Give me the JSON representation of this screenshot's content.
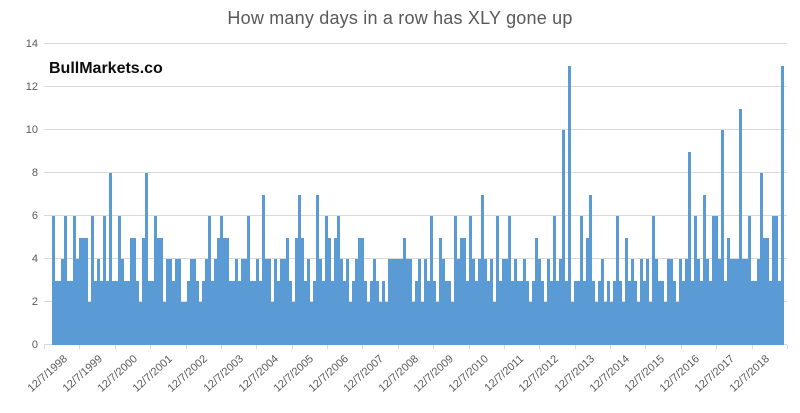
{
  "title": "How many days in a row has XLY gone up",
  "watermark": "BullMarkets.co",
  "colors": {
    "bar": "#5b9bd5",
    "title_text": "#595959",
    "axis_text": "#595959",
    "gridline": "#d9d9d9",
    "watermark_text": "#0d0d0d",
    "background": "#ffffff"
  },
  "chart_data": {
    "type": "bar",
    "title": "How many days in a row has XLY gone up",
    "xlabel": "",
    "ylabel": "",
    "ylim": [
      0,
      14
    ],
    "y_ticks": [
      0,
      2,
      4,
      6,
      8,
      10,
      12,
      14
    ],
    "grid": "horizontal",
    "legend": "none",
    "x_tick_labels": [
      "12/7/1998",
      "12/7/1999",
      "12/7/2000",
      "12/7/2001",
      "12/7/2002",
      "12/7/2003",
      "12/7/2004",
      "12/7/2005",
      "12/7/2006",
      "12/7/2007",
      "12/7/2008",
      "12/7/2009",
      "12/7/2010",
      "12/7/2011",
      "12/7/2012",
      "12/7/2013",
      "12/7/2014",
      "12/7/2015",
      "12/7/2016",
      "12/7/2017",
      "12/7/2018"
    ],
    "values_note": "Consecutive up-day streak lengths per occurrence, 12/7/1998 through late 2018, read left to right",
    "values": [
      6,
      3,
      3,
      4,
      6,
      3,
      3,
      6,
      4,
      5,
      5,
      5,
      2,
      6,
      3,
      4,
      3,
      6,
      3,
      8,
      3,
      3,
      6,
      4,
      3,
      3,
      5,
      5,
      3,
      2,
      5,
      8,
      3,
      3,
      6,
      5,
      5,
      2,
      4,
      4,
      3,
      4,
      4,
      2,
      2,
      3,
      4,
      4,
      3,
      2,
      3,
      4,
      6,
      3,
      4,
      5,
      6,
      5,
      5,
      3,
      3,
      4,
      3,
      4,
      4,
      6,
      3,
      3,
      4,
      3,
      7,
      4,
      4,
      2,
      4,
      3,
      4,
      4,
      5,
      3,
      2,
      5,
      7,
      5,
      3,
      4,
      2,
      3,
      7,
      4,
      3,
      6,
      5,
      3,
      5,
      6,
      4,
      3,
      4,
      2,
      3,
      4,
      5,
      5,
      3,
      2,
      3,
      4,
      3,
      2,
      3,
      2,
      4,
      4,
      4,
      4,
      4,
      5,
      4,
      4,
      2,
      3,
      4,
      2,
      4,
      3,
      6,
      3,
      2,
      5,
      4,
      3,
      3,
      2,
      6,
      4,
      5,
      5,
      3,
      6,
      4,
      3,
      4,
      7,
      4,
      3,
      4,
      2,
      6,
      3,
      4,
      4,
      6,
      3,
      4,
      3,
      3,
      4,
      3,
      2,
      3,
      5,
      4,
      3,
      2,
      4,
      3,
      6,
      3,
      4,
      10,
      3,
      13,
      2,
      3,
      3,
      6,
      3,
      5,
      7,
      3,
      2,
      3,
      4,
      2,
      3,
      2,
      3,
      6,
      3,
      2,
      5,
      3,
      4,
      3,
      2,
      4,
      3,
      4,
      2,
      6,
      4,
      3,
      3,
      2,
      4,
      4,
      3,
      2,
      4,
      3,
      4,
      9,
      3,
      6,
      4,
      3,
      7,
      4,
      3,
      6,
      6,
      4,
      10,
      3,
      5,
      4,
      4,
      4,
      11,
      4,
      4,
      6,
      3,
      3,
      4,
      8,
      5,
      5,
      3,
      6,
      6,
      3,
      13
    ]
  }
}
